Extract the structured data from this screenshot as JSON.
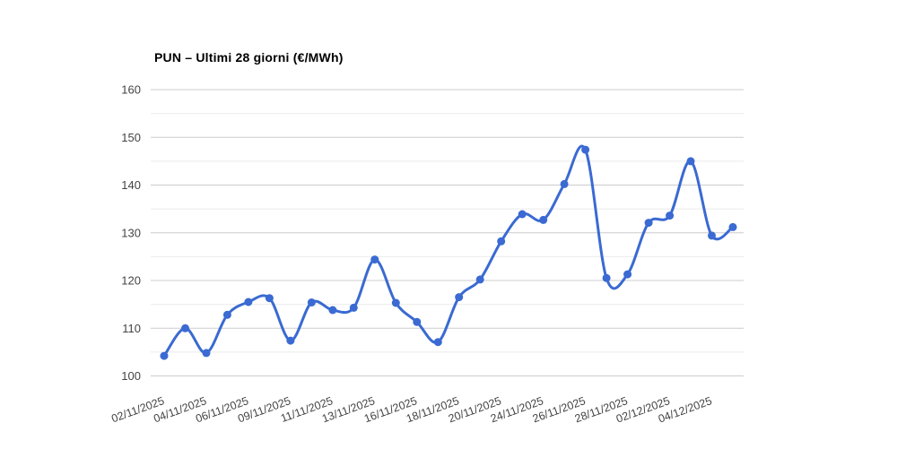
{
  "chart_data": {
    "type": "line",
    "title": "PUN – Ultimi 28 giorni (€/MWh)",
    "xlabel": "",
    "ylabel": "",
    "ylim": [
      100,
      160
    ],
    "y_ticks": [
      100,
      110,
      120,
      130,
      140,
      150,
      160
    ],
    "y_minor_ticks": [
      105,
      115,
      125,
      135,
      145,
      155
    ],
    "grid": true,
    "legend": "none",
    "curve": "smooth",
    "point_count": 28,
    "values": [
      104.2,
      110.0,
      104.8,
      112.8,
      115.5,
      116.3,
      107.4,
      115.4,
      113.8,
      114.3,
      124.4,
      115.3,
      111.3,
      107.1,
      116.5,
      120.2,
      128.2,
      133.9,
      132.7,
      140.2,
      147.4,
      120.5,
      121.3,
      132.1,
      133.6,
      145.0,
      129.4,
      131.2
    ],
    "x_tick_labels": [
      "02/11/2025",
      "04/11/2025",
      "06/11/2025",
      "09/11/2025",
      "11/11/2025",
      "13/11/2025",
      "16/11/2025",
      "18/11/2025",
      "20/11/2025",
      "24/11/2025",
      "26/11/2025",
      "28/11/2025",
      "02/12/2025",
      "04/12/2025"
    ],
    "x_tick_point_indices": [
      0,
      2,
      4,
      6,
      8,
      10,
      12,
      14,
      16,
      18,
      20,
      22,
      24,
      26
    ],
    "colors": {
      "series": "#3a6ad2",
      "grid_major": "#cccccc",
      "grid_minor": "#ebebeb",
      "tick_text": "#444444",
      "title_text": "#000000",
      "background": "#ffffff"
    }
  }
}
